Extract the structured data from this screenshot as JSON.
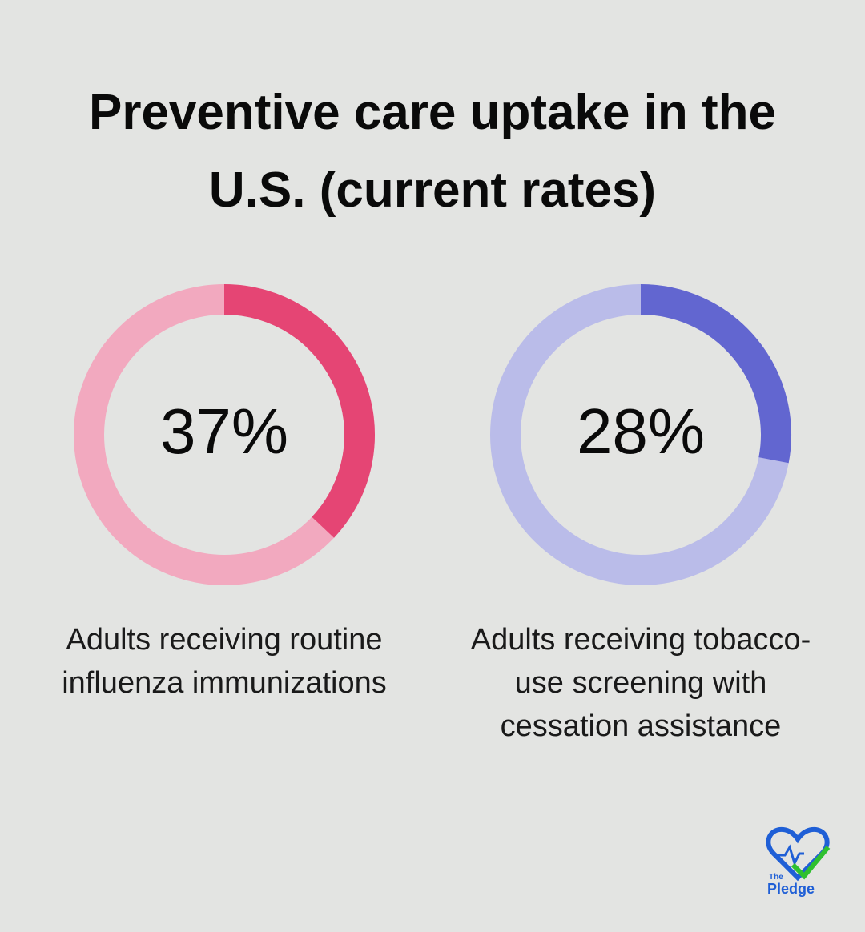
{
  "title": "Preventive care uptake in the U.S. (current rates)",
  "chart_data": [
    {
      "type": "donut",
      "categories": [
        "Adults receiving routine influenza immunizations"
      ],
      "values": [
        37
      ],
      "value_labels": [
        "37%"
      ],
      "ylim": [
        0,
        100
      ],
      "color": "#e54574",
      "track_color": "#f2a9bf"
    },
    {
      "type": "donut",
      "categories": [
        "Adults receiving tobacco-use screening with cessation assistance"
      ],
      "values": [
        28
      ],
      "value_labels": [
        "28%"
      ],
      "ylim": [
        0,
        100
      ],
      "color": "#6266d0",
      "track_color": "#babce9"
    }
  ],
  "logo": {
    "small": "The",
    "big": "Pledge"
  }
}
